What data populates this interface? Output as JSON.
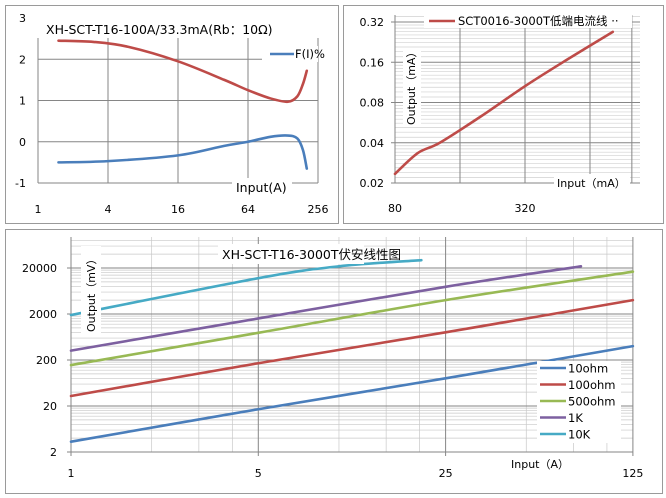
{
  "chart_data": [
    {
      "type": "line",
      "title": "XH-SCT-T16-100A/33.3mA(Rb：10Ω)",
      "xlabel": "Input(A)",
      "ylabel": "",
      "x_scale": "log4",
      "xlim": [
        1,
        256
      ],
      "ylim": [
        -1,
        3
      ],
      "x_ticks": [
        "1",
        "4",
        "16",
        "64",
        "256"
      ],
      "y_ticks": [
        "3",
        "2",
        "1",
        "0",
        "-1"
      ],
      "grid": true,
      "legend_position": "top-right",
      "series": [
        {
          "color": "#be4b48",
          "points": [
            [
              1.5,
              2.45
            ],
            [
              3,
              2.42
            ],
            [
              6,
              2.3
            ],
            [
              16,
              1.95
            ],
            [
              40,
              1.5
            ],
            [
              64,
              1.25
            ],
            [
              100,
              1.05
            ],
            [
              141,
              0.97
            ],
            [
              170,
              1.1
            ],
            [
              190,
              1.4
            ],
            [
              205,
              1.72
            ]
          ]
        },
        {
          "name": "F(I)%",
          "color": "#4a7ebb",
          "points": [
            [
              1.5,
              -0.5
            ],
            [
              4,
              -0.47
            ],
            [
              16,
              -0.33
            ],
            [
              40,
              -0.1
            ],
            [
              64,
              0
            ],
            [
              100,
              0.12
            ],
            [
              141,
              0.15
            ],
            [
              170,
              0.08
            ],
            [
              190,
              -0.2
            ],
            [
              205,
              -0.65
            ]
          ]
        }
      ]
    },
    {
      "type": "line",
      "title": "",
      "xlabel": "Input（mA）",
      "ylabel": "Output（mA）",
      "x_scale": "log2",
      "y_scale": "log2",
      "xlim": [
        80,
        1090
      ],
      "ylim": [
        0.02,
        0.36
      ],
      "x_ticks": [
        "80",
        "320"
      ],
      "y_ticks": [
        "0.32",
        "0.16",
        "0.08",
        "0.04",
        "0.02"
      ],
      "grid": true,
      "legend_position": "top",
      "series": [
        {
          "name": "SCT0016-3000T低端电流线 ··",
          "color": "#be4b48",
          "points": [
            [
              80,
              0.0234
            ],
            [
              102,
              0.0335
            ],
            [
              129,
              0.04
            ],
            [
              200,
              0.063
            ],
            [
              320,
              0.106
            ],
            [
              500,
              0.167
            ],
            [
              816,
              0.27
            ]
          ]
        }
      ]
    },
    {
      "type": "line",
      "title": "XH-SCT-T16-3000T伏安线性图",
      "xlabel": "Input（A）",
      "ylabel": "Output（mV）",
      "x_scale": "log5",
      "y_scale": "log10",
      "xlim": [
        1,
        125
      ],
      "ylim": [
        2,
        100000
      ],
      "x_ticks": [
        "1",
        "5",
        "25",
        "125"
      ],
      "y_ticks": [
        "20000",
        "2000",
        "200",
        "20",
        "2"
      ],
      "grid": true,
      "legend_position": "bottom-right",
      "series": [
        {
          "name": "10ohm",
          "color": "#4a7ebb",
          "points": [
            [
              1,
              3.35
            ],
            [
              5,
              17
            ],
            [
              25,
              80
            ],
            [
              125,
              400
            ]
          ]
        },
        {
          "name": "100ohm",
          "color": "#be4b48",
          "points": [
            [
              1,
              33
            ],
            [
              5,
              170
            ],
            [
              25,
              800
            ],
            [
              125,
              4000
            ]
          ]
        },
        {
          "name": "500ohm",
          "color": "#98b954",
          "points": [
            [
              1,
              155
            ],
            [
              5,
              780
            ],
            [
              25,
              4000
            ],
            [
              125,
              16600
            ]
          ]
        },
        {
          "name": "1K",
          "color": "#7d60a0",
          "points": [
            [
              1,
              320
            ],
            [
              5,
              1600
            ],
            [
              25,
              7800
            ],
            [
              80,
              21800
            ]
          ]
        },
        {
          "name": "10K",
          "color": "#46aac5",
          "points": [
            [
              1,
              1900
            ],
            [
              5,
              12000
            ],
            [
              10,
              21800
            ],
            [
              20.3,
              29600
            ]
          ]
        }
      ]
    }
  ]
}
